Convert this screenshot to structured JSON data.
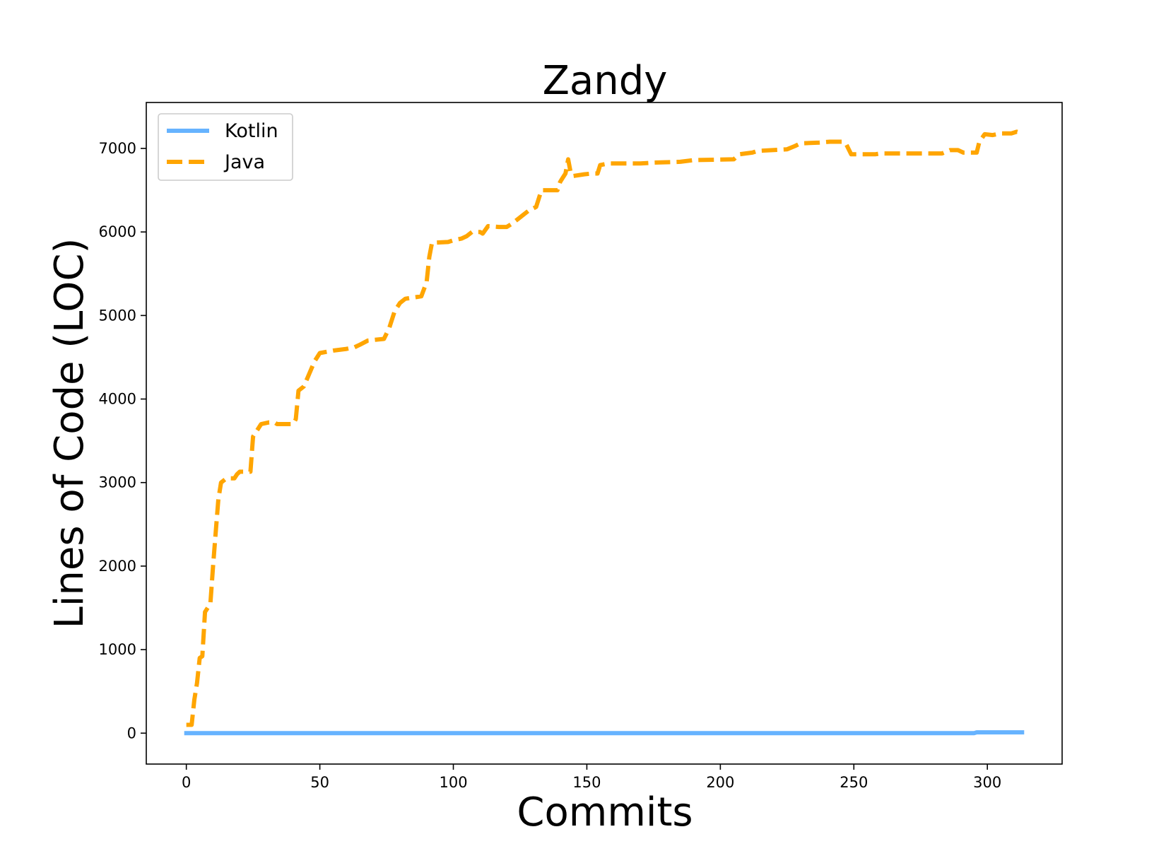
{
  "chart_data": {
    "type": "line",
    "title": "Zandy",
    "xlabel": "Commits",
    "ylabel": "Lines of Code (LOC)",
    "xlim": [
      -15,
      328
    ],
    "ylim": [
      -370,
      7550
    ],
    "xticks": [
      0,
      50,
      100,
      150,
      200,
      250,
      300
    ],
    "yticks": [
      0,
      1000,
      2000,
      3000,
      4000,
      5000,
      6000,
      7000
    ],
    "grid": false,
    "legend_position": "top-left",
    "series": [
      {
        "name": "Kotlin",
        "color": "#66b3ff",
        "style": "solid",
        "points": [
          [
            0,
            0
          ],
          [
            295,
            0
          ],
          [
            296,
            10
          ],
          [
            313,
            10
          ]
        ]
      },
      {
        "name": "Java",
        "color": "#ffa500",
        "style": "dashed",
        "points": [
          [
            0,
            100
          ],
          [
            2,
            100
          ],
          [
            3,
            400
          ],
          [
            4,
            600
          ],
          [
            5,
            900
          ],
          [
            6,
            920
          ],
          [
            7,
            1450
          ],
          [
            8,
            1500
          ],
          [
            9,
            1550
          ],
          [
            10,
            2000
          ],
          [
            11,
            2400
          ],
          [
            12,
            2800
          ],
          [
            13,
            3000
          ],
          [
            15,
            3050
          ],
          [
            18,
            3050
          ],
          [
            19,
            3100
          ],
          [
            20,
            3130
          ],
          [
            24,
            3130
          ],
          [
            25,
            3550
          ],
          [
            26,
            3600
          ],
          [
            28,
            3700
          ],
          [
            31,
            3720
          ],
          [
            33,
            3720
          ],
          [
            34,
            3700
          ],
          [
            40,
            3700
          ],
          [
            41,
            3760
          ],
          [
            42,
            4100
          ],
          [
            44,
            4150
          ],
          [
            46,
            4300
          ],
          [
            48,
            4450
          ],
          [
            50,
            4550
          ],
          [
            55,
            4580
          ],
          [
            60,
            4600
          ],
          [
            63,
            4620
          ],
          [
            65,
            4650
          ],
          [
            68,
            4700
          ],
          [
            74,
            4720
          ],
          [
            76,
            4850
          ],
          [
            78,
            5050
          ],
          [
            80,
            5150
          ],
          [
            82,
            5200
          ],
          [
            88,
            5230
          ],
          [
            90,
            5400
          ],
          [
            91,
            5700
          ],
          [
            92,
            5870
          ],
          [
            98,
            5880
          ],
          [
            100,
            5900
          ],
          [
            103,
            5920
          ],
          [
            105,
            5950
          ],
          [
            107,
            6000
          ],
          [
            110,
            6000
          ],
          [
            111,
            5980
          ],
          [
            113,
            6070
          ],
          [
            117,
            6060
          ],
          [
            120,
            6060
          ],
          [
            122,
            6100
          ],
          [
            124,
            6150
          ],
          [
            126,
            6200
          ],
          [
            128,
            6250
          ],
          [
            131,
            6300
          ],
          [
            133,
            6500
          ],
          [
            139,
            6500
          ],
          [
            140,
            6600
          ],
          [
            141,
            6650
          ],
          [
            142,
            6700
          ],
          [
            143,
            6870
          ],
          [
            144,
            6700
          ],
          [
            145,
            6670
          ],
          [
            149,
            6690
          ],
          [
            152,
            6700
          ],
          [
            154,
            6700
          ],
          [
            155,
            6800
          ],
          [
            158,
            6820
          ],
          [
            165,
            6820
          ],
          [
            170,
            6820
          ],
          [
            175,
            6830
          ],
          [
            185,
            6840
          ],
          [
            190,
            6860
          ],
          [
            205,
            6870
          ],
          [
            207,
            6930
          ],
          [
            212,
            6950
          ],
          [
            214,
            6970
          ],
          [
            225,
            6990
          ],
          [
            228,
            7030
          ],
          [
            230,
            7060
          ],
          [
            237,
            7070
          ],
          [
            241,
            7080
          ],
          [
            246,
            7080
          ],
          [
            247,
            7060
          ],
          [
            249,
            6930
          ],
          [
            253,
            6930
          ],
          [
            258,
            6930
          ],
          [
            260,
            6940
          ],
          [
            272,
            6940
          ],
          [
            283,
            6940
          ],
          [
            286,
            6980
          ],
          [
            289,
            6980
          ],
          [
            291,
            6950
          ],
          [
            294,
            6950
          ],
          [
            296,
            6950
          ],
          [
            297,
            7080
          ],
          [
            299,
            7170
          ],
          [
            302,
            7160
          ],
          [
            305,
            7180
          ],
          [
            309,
            7180
          ],
          [
            311,
            7200
          ],
          [
            313,
            7180
          ]
        ]
      }
    ]
  }
}
